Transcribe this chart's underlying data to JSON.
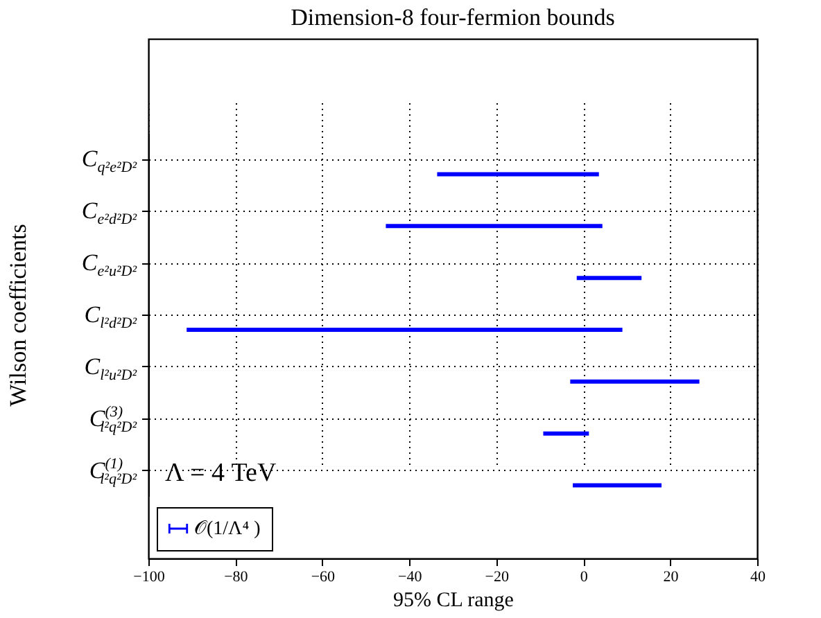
{
  "chart_data": {
    "type": "bar",
    "orientation": "horizontal",
    "title": "Dimension-8 four-fermion bounds",
    "xlabel": "95% CL range",
    "ylabel": "Wilson coefficients",
    "categories": [
      "C$_{q²e²D²}$",
      "C$_{e²d²D²}$",
      "C$_{e²u²D²}$",
      "C$_{l²d²D²}$",
      "C$_{l²u²D²}$",
      "C$^{(3)}$$_{l²q²D²}$",
      "C$^{(1)}$$_{l²q²D²}$"
    ],
    "series": [
      {
        "name": "𝒪(1/Λ⁴ )",
        "color": "#0000ff",
        "base": [
          -33.6,
          -45.4,
          -1.5,
          -91.2,
          -3.0,
          -9.2,
          -2.4
        ],
        "values": [
          37.2,
          49.8,
          14.9,
          100.2,
          29.7,
          10.5,
          20.4
        ]
      }
    ],
    "xlim": [
      -100,
      40
    ],
    "xticks": [
      -100,
      -80,
      -60,
      -40,
      -20,
      0,
      20,
      40
    ],
    "grid": true,
    "legend": "bottom left",
    "annotations": [
      "Λ = 4 TeV"
    ]
  }
}
